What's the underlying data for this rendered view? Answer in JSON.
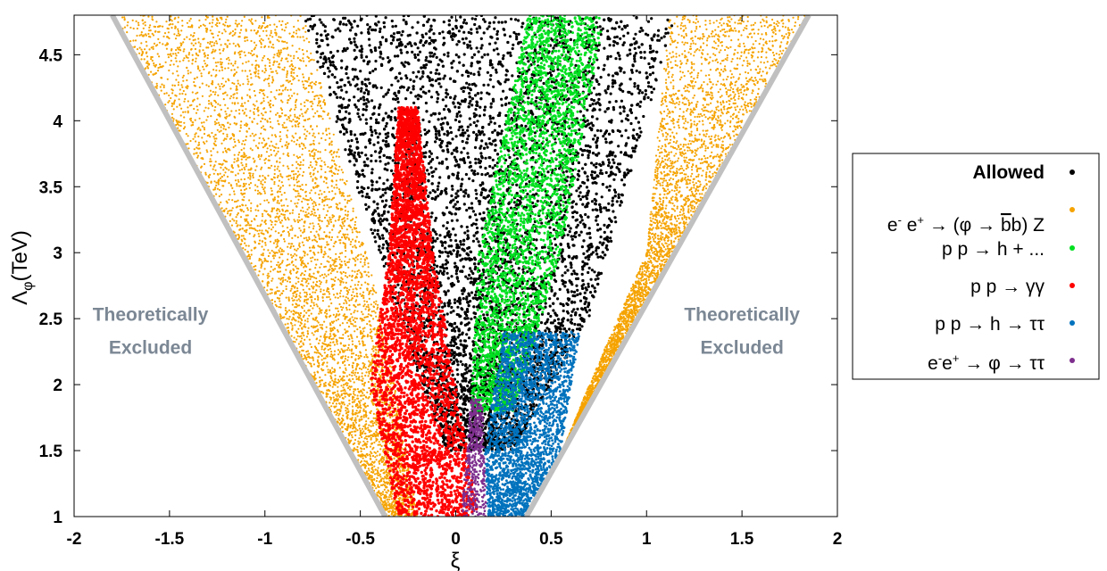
{
  "chart_data": {
    "type": "scatter",
    "xlabel": "ξ",
    "ylabel_main": "Λ",
    "ylabel_sub": "φ",
    "ylabel_tail": "(TeV)",
    "xlim": [
      -2,
      2
    ],
    "ylim": [
      1,
      4.8
    ],
    "x_ticks": [
      "-2",
      "-1.5",
      "-1",
      "-0.5",
      "0",
      "0.5",
      "1",
      "1.5",
      "2"
    ],
    "y_ticks": [
      "1",
      "1.5",
      "2",
      "2.5",
      "3",
      "3.5",
      "4",
      "4.5"
    ],
    "bound_lines": [
      {
        "x": [
          -0.37,
          -1.8
        ],
        "y": [
          1.0,
          4.8
        ],
        "color": "#c0c0c0"
      },
      {
        "x": [
          0.37,
          1.85
        ],
        "y": [
          1.0,
          4.8
        ],
        "color": "#c0c0c0"
      }
    ],
    "annotations": [
      {
        "lines": [
          "Theoretically",
          "Excluded"
        ],
        "x": -1.6,
        "y": 2.35
      },
      {
        "lines": [
          "Theoretically",
          "Excluded"
        ],
        "x": 1.5,
        "y": 2.35
      }
    ],
    "series": [
      {
        "name": "Allowed",
        "color": "#000000"
      },
      {
        "name": "e⁻ e⁺ → (φ → b̄b) Z",
        "color": "#f5a300"
      },
      {
        "name": "p p → h + ...",
        "color": "#00e020"
      },
      {
        "name": "p p → γγ",
        "color": "#ff0000"
      },
      {
        "name": "p p → h → ττ",
        "color": "#0072bd"
      },
      {
        "name": "e⁻e⁺ → φ → ττ",
        "color": "#7e2f8e"
      }
    ],
    "legend_position": "right"
  },
  "legend": {
    "allowed": "Allowed",
    "ee_bbz": {
      "pre": "e",
      "sup1": "-",
      "mid": " e",
      "sup2": "+",
      "tail": " → (φ → ",
      "b1": "b",
      "b2": "b) Z"
    },
    "pph": "p p → h + ...",
    "ppgg": "p p → γγ",
    "pphtt": "p p → h → ττ",
    "eephitt": {
      "pre": "e",
      "sup1": "-",
      "mid": "e",
      "sup2": "+",
      "tail": " → φ → ττ"
    }
  }
}
